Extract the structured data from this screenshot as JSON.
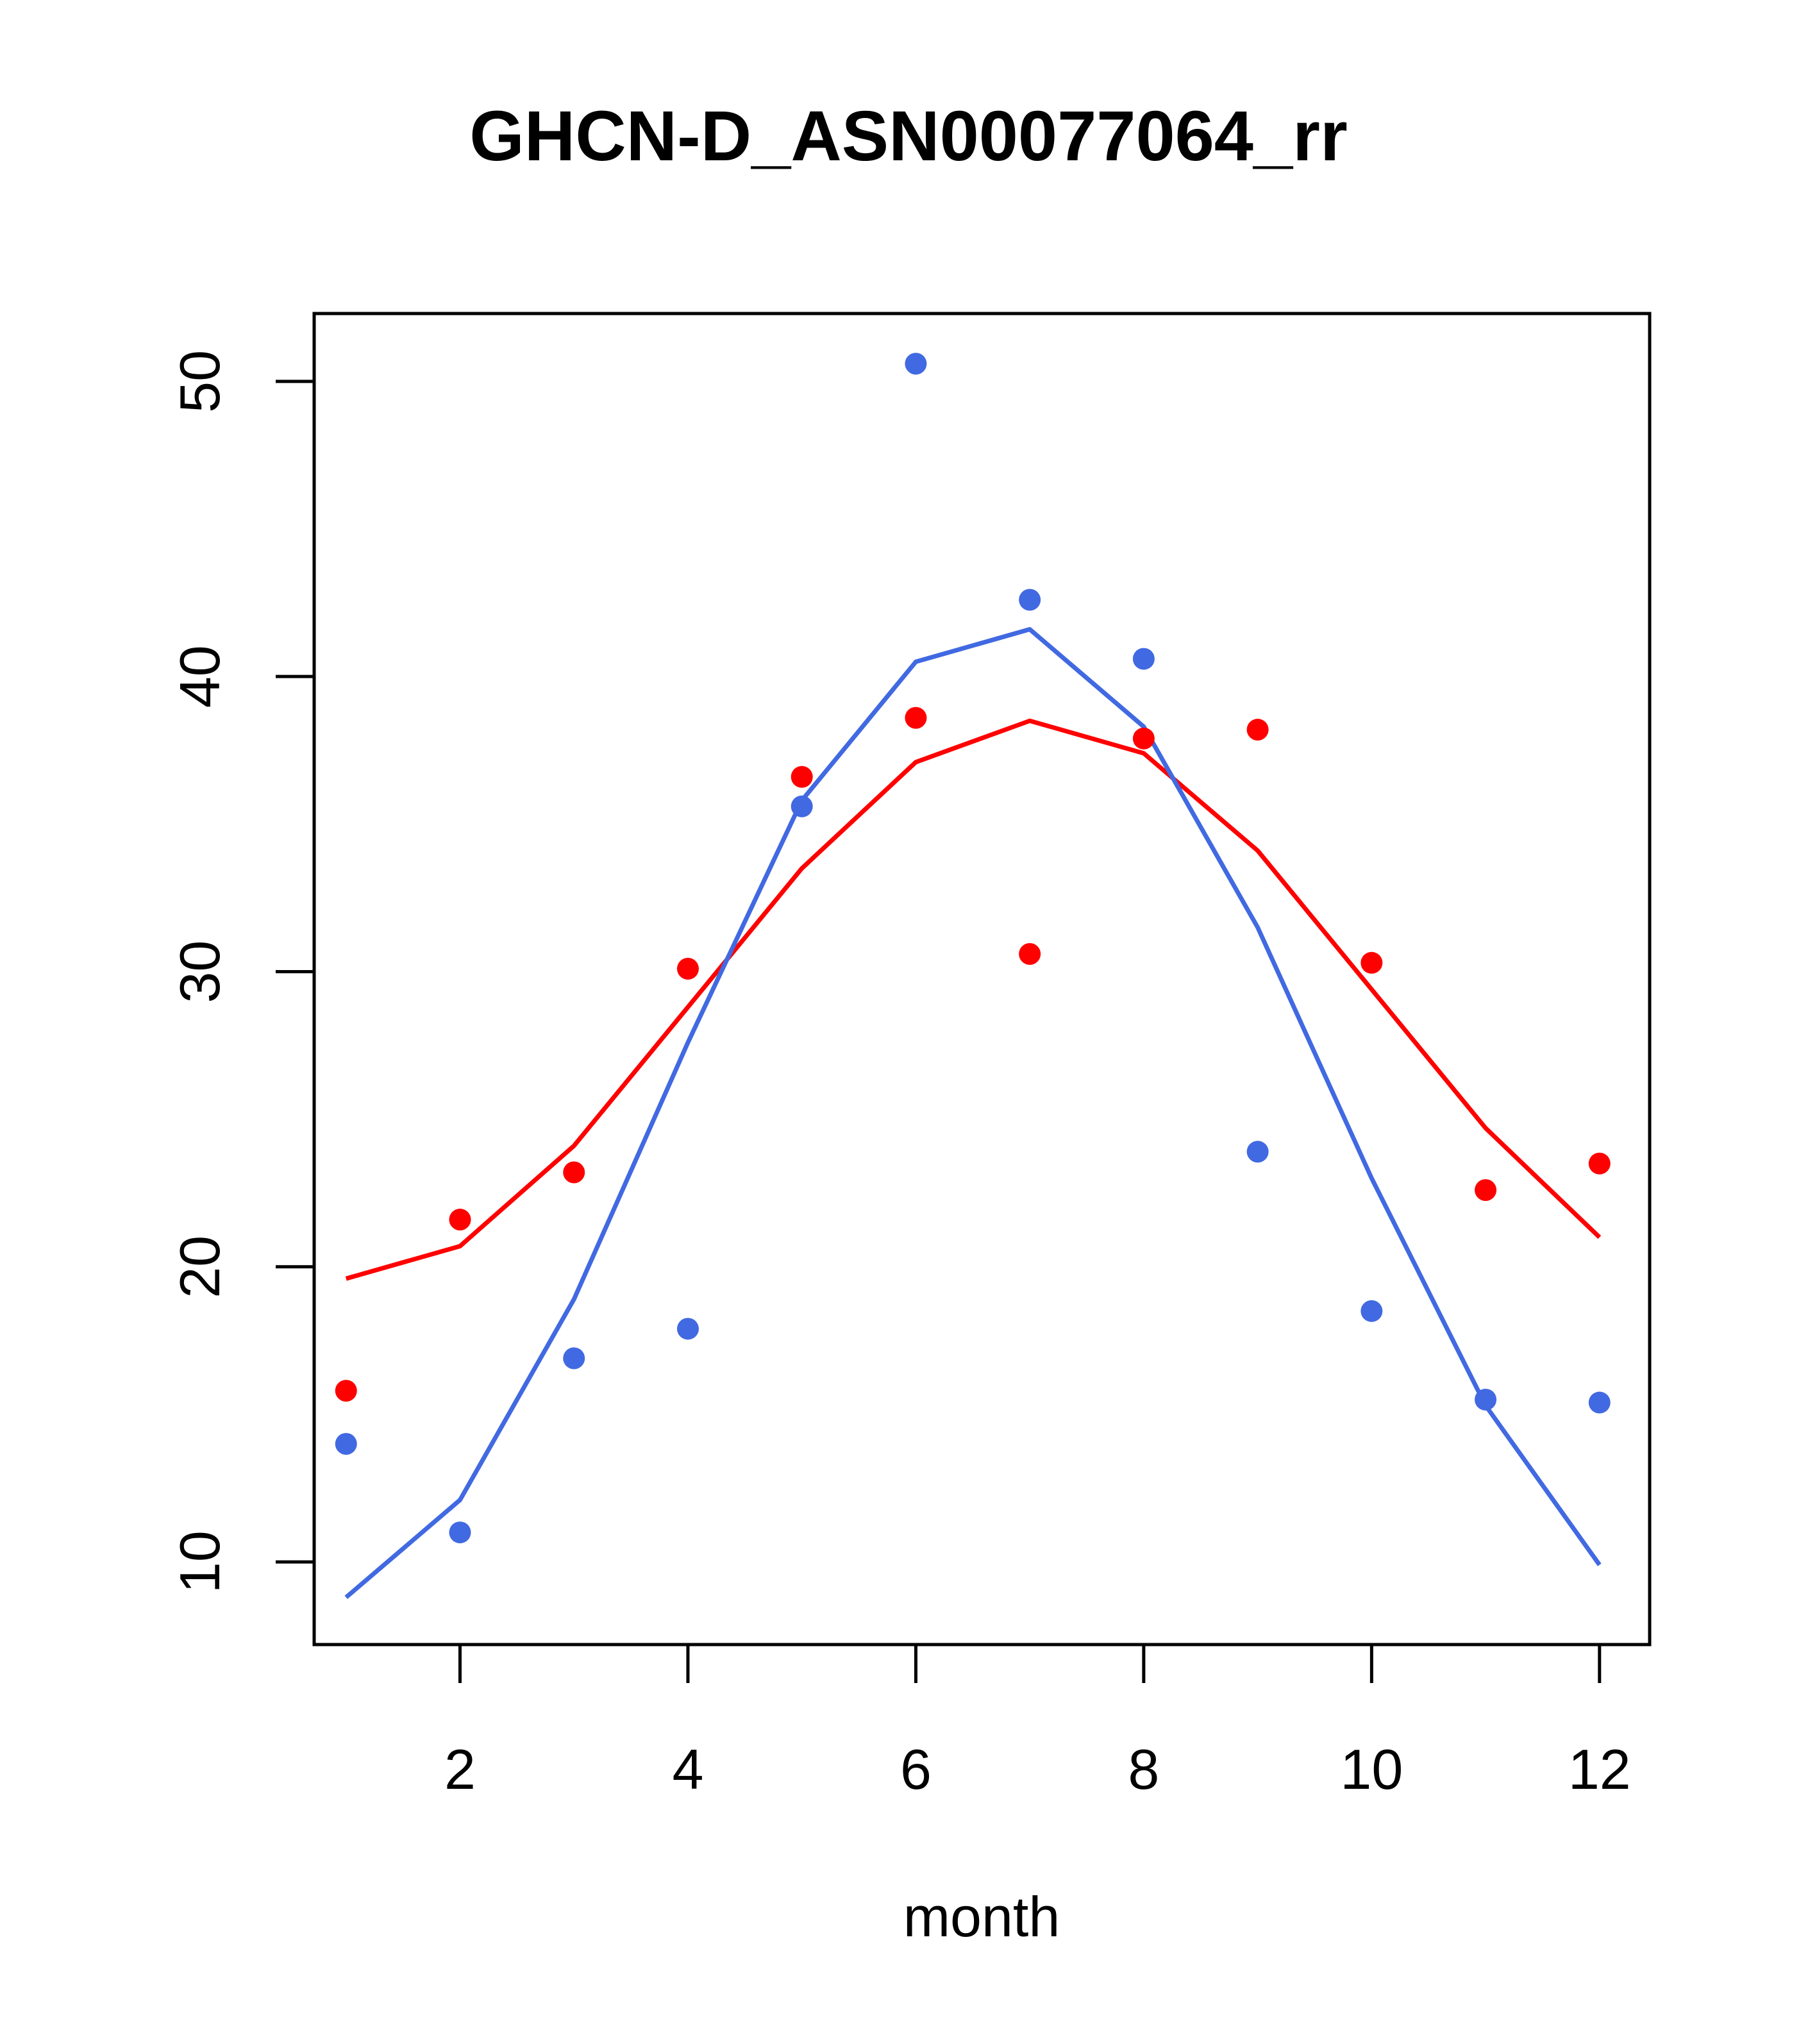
{
  "chart_data": {
    "type": "scatter",
    "title": "GHCN-D_ASN00077064_rr",
    "xlabel": "month",
    "ylabel": "",
    "xlim": [
      0.72,
      12.44
    ],
    "ylim": [
      7.2,
      52.3
    ],
    "x_ticks": [
      2,
      4,
      6,
      8,
      10,
      12
    ],
    "y_ticks": [
      10,
      20,
      30,
      40,
      50
    ],
    "grid": false,
    "legend": "none",
    "x": [
      1,
      2,
      3,
      4,
      5,
      6,
      7,
      8,
      9,
      10,
      11,
      12
    ],
    "series": [
      {
        "color": "#ff0000",
        "points": [
          15.8,
          21.6,
          23.2,
          30.1,
          36.6,
          38.6,
          30.6,
          37.9,
          38.2,
          30.3,
          22.6,
          23.5
        ],
        "line": [
          19.6,
          20.7,
          24.1,
          28.8,
          33.5,
          37.1,
          38.5,
          37.4,
          34.1,
          29.4,
          24.7,
          21.0
        ]
      },
      {
        "color": "#4169e1",
        "points": [
          14.0,
          11.0,
          16.9,
          17.9,
          35.6,
          50.6,
          42.6,
          40.6,
          23.9,
          18.5,
          15.5,
          15.4
        ],
        "line": [
          8.8,
          12.1,
          18.9,
          27.6,
          35.8,
          40.5,
          41.6,
          38.3,
          31.5,
          23.0,
          15.3,
          9.9
        ]
      }
    ]
  }
}
